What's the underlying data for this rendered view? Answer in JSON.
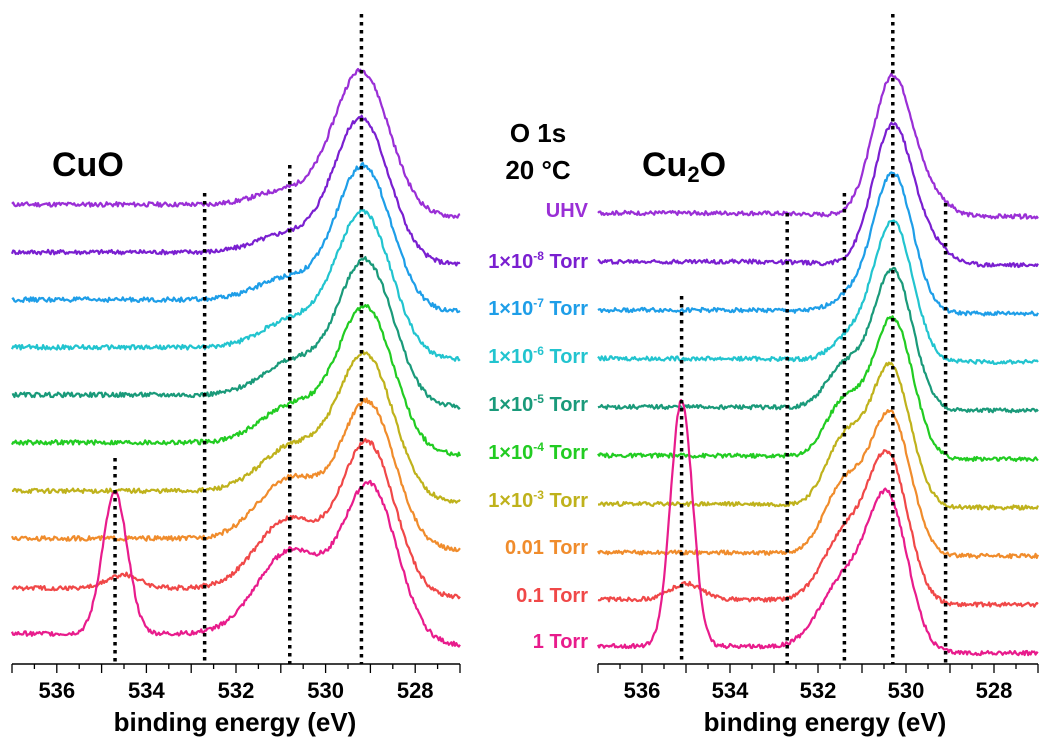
{
  "title_line1": "O 1s",
  "title_line2": "20 °C",
  "pressure_labels": [
    {
      "id": "uhv",
      "text": "UHV",
      "mant": "",
      "exp": "",
      "unit": "",
      "color": "#9a2fd6"
    },
    {
      "id": "p1e8",
      "text": "",
      "mant": "1×10",
      "exp": "-8",
      "unit": " Torr",
      "color": "#7a1fd0"
    },
    {
      "id": "p1e7",
      "text": "",
      "mant": "1×10",
      "exp": "-7",
      "unit": " Torr",
      "color": "#1e9ee8"
    },
    {
      "id": "p1e6",
      "text": "",
      "mant": "1×10",
      "exp": "-6",
      "unit": " Torr",
      "color": "#22c4cf"
    },
    {
      "id": "p1e5",
      "text": "",
      "mant": "1×10",
      "exp": "-5",
      "unit": " Torr",
      "color": "#1a9a7a"
    },
    {
      "id": "p1e4",
      "text": "",
      "mant": "1×10",
      "exp": "-4",
      "unit": " Torr",
      "color": "#22cc22"
    },
    {
      "id": "p1e3",
      "text": "",
      "mant": "1×10",
      "exp": "-3",
      "unit": " Torr",
      "color": "#bfb21c"
    },
    {
      "id": "p001",
      "text": "0.01 Torr",
      "mant": "",
      "exp": "",
      "unit": "",
      "color": "#f08c2c"
    },
    {
      "id": "p01",
      "text": "0.1 Torr",
      "mant": "",
      "exp": "",
      "unit": "",
      "color": "#f04848"
    },
    {
      "id": "p1",
      "text": "1 Torr",
      "mant": "",
      "exp": "",
      "unit": "",
      "color": "#e81c8c"
    }
  ],
  "chart_data": [
    {
      "type": "line",
      "panel_title": "CuO",
      "xlabel": "binding energy (eV)",
      "xlim": [
        537,
        527
      ],
      "x_reversed": true,
      "xticks": [
        536,
        534,
        532,
        530,
        528
      ],
      "grid": false,
      "reference_lines_eV": [
        534.7,
        532.7,
        530.8,
        529.2
      ],
      "series": [
        {
          "name": "UHV",
          "color": "#9a2fd6",
          "offset": 9,
          "peaks": [
            {
              "c": 529.2,
              "h": 3.8,
              "w": 0.62
            },
            {
              "c": 530.8,
              "h": 0.5,
              "w": 0.7
            }
          ],
          "edge": 0.32
        },
        {
          "name": "1×10-8 Torr",
          "color": "#7a1fd0",
          "offset": 8,
          "peaks": [
            {
              "c": 529.2,
              "h": 3.8,
              "w": 0.62
            },
            {
              "c": 530.8,
              "h": 0.6,
              "w": 0.7
            }
          ],
          "edge": 0.32
        },
        {
          "name": "1×10-7 Torr",
          "color": "#1e9ee8",
          "offset": 7,
          "peaks": [
            {
              "c": 529.15,
              "h": 3.8,
              "w": 0.62
            },
            {
              "c": 530.8,
              "h": 0.7,
              "w": 0.7
            }
          ],
          "edge": 0.32
        },
        {
          "name": "1×10-6 Torr",
          "color": "#22c4cf",
          "offset": 6,
          "peaks": [
            {
              "c": 529.15,
              "h": 3.8,
              "w": 0.62
            },
            {
              "c": 530.7,
              "h": 0.85,
              "w": 0.7
            }
          ],
          "edge": 0.32
        },
        {
          "name": "1×10-5 Torr",
          "color": "#1a9a7a",
          "offset": 5,
          "peaks": [
            {
              "c": 529.1,
              "h": 3.8,
              "w": 0.62
            },
            {
              "c": 530.7,
              "h": 1.0,
              "w": 0.7
            }
          ],
          "edge": 0.32
        },
        {
          "name": "1×10-4 Torr",
          "color": "#22cc22",
          "offset": 4,
          "peaks": [
            {
              "c": 529.1,
              "h": 3.8,
              "w": 0.62
            },
            {
              "c": 530.7,
              "h": 1.1,
              "w": 0.72
            }
          ],
          "edge": 0.32
        },
        {
          "name": "1×10-3 Torr",
          "color": "#bfb21c",
          "offset": 3,
          "peaks": [
            {
              "c": 529.1,
              "h": 3.8,
              "w": 0.62
            },
            {
              "c": 530.7,
              "h": 1.3,
              "w": 0.72
            }
          ],
          "edge": 0.3
        },
        {
          "name": "0.01 Torr",
          "color": "#f08c2c",
          "offset": 2,
          "peaks": [
            {
              "c": 529.05,
              "h": 3.8,
              "w": 0.6
            },
            {
              "c": 530.75,
              "h": 1.7,
              "w": 0.72
            }
          ],
          "edge": 0.3
        },
        {
          "name": "0.1 Torr",
          "color": "#f04848",
          "offset": 1,
          "peaks": [
            {
              "c": 529.05,
              "h": 4.0,
              "w": 0.6
            },
            {
              "c": 530.8,
              "h": 1.9,
              "w": 0.72
            },
            {
              "c": 534.5,
              "h": 0.35,
              "w": 0.35
            }
          ],
          "edge": 0.25
        },
        {
          "name": "1 Torr",
          "color": "#e81c8c",
          "offset": 0,
          "peaks": [
            {
              "c": 529.0,
              "h": 4.1,
              "w": 0.6
            },
            {
              "c": 530.75,
              "h": 2.3,
              "w": 0.75
            },
            {
              "c": 534.7,
              "h": 3.7,
              "w": 0.28
            }
          ],
          "edge": 0.3
        }
      ]
    },
    {
      "type": "line",
      "panel_title": "Cu2O",
      "xlabel": "binding energy (eV)",
      "xlim": [
        537,
        527
      ],
      "x_reversed": true,
      "xticks": [
        536,
        534,
        532,
        530,
        528
      ],
      "grid": false,
      "reference_lines_eV": [
        535.1,
        532.7,
        531.4,
        530.3,
        529.1
      ],
      "series": [
        {
          "name": "UHV",
          "color": "#9a2fd6",
          "offset": 9,
          "peaks": [
            {
              "c": 530.3,
              "h": 4.0,
              "w": 0.45
            },
            {
              "c": 529.4,
              "h": 0.45,
              "w": 0.4
            }
          ],
          "edge": 0.1
        },
        {
          "name": "1×10-8 Torr",
          "color": "#7a1fd0",
          "offset": 8,
          "peaks": [
            {
              "c": 530.3,
              "h": 4.0,
              "w": 0.45
            },
            {
              "c": 529.4,
              "h": 0.45,
              "w": 0.4
            }
          ],
          "edge": 0.1
        },
        {
          "name": "1×10-7 Torr",
          "color": "#1e9ee8",
          "offset": 7,
          "peaks": [
            {
              "c": 530.3,
              "h": 4.0,
              "w": 0.45
            },
            {
              "c": 531.3,
              "h": 0.4,
              "w": 0.4
            }
          ],
          "edge": 0.1
        },
        {
          "name": "1×10-6 Torr",
          "color": "#22c4cf",
          "offset": 6,
          "peaks": [
            {
              "c": 530.3,
              "h": 4.0,
              "w": 0.45
            },
            {
              "c": 531.3,
              "h": 0.6,
              "w": 0.4
            }
          ],
          "edge": 0.1
        },
        {
          "name": "1×10-5 Torr",
          "color": "#1a9a7a",
          "offset": 5,
          "peaks": [
            {
              "c": 530.3,
              "h": 4.0,
              "w": 0.45
            },
            {
              "c": 531.4,
              "h": 1.2,
              "w": 0.42
            }
          ],
          "edge": 0.1
        },
        {
          "name": "1×10-4 Torr",
          "color": "#22cc22",
          "offset": 4,
          "peaks": [
            {
              "c": 530.3,
              "h": 4.0,
              "w": 0.45
            },
            {
              "c": 531.4,
              "h": 1.6,
              "w": 0.42
            }
          ],
          "edge": 0.1
        },
        {
          "name": "1×10-3 Torr",
          "color": "#bfb21c",
          "offset": 3,
          "peaks": [
            {
              "c": 530.35,
              "h": 4.0,
              "w": 0.45
            },
            {
              "c": 531.4,
              "h": 1.9,
              "w": 0.42
            }
          ],
          "edge": 0.1
        },
        {
          "name": "0.01 Torr",
          "color": "#f08c2c",
          "offset": 2,
          "peaks": [
            {
              "c": 530.35,
              "h": 4.0,
              "w": 0.45
            },
            {
              "c": 531.4,
              "h": 2.0,
              "w": 0.45
            }
          ],
          "edge": 0.1
        },
        {
          "name": "0.1 Torr",
          "color": "#f04848",
          "offset": 1,
          "peaks": [
            {
              "c": 530.4,
              "h": 4.1,
              "w": 0.45
            },
            {
              "c": 531.4,
              "h": 1.9,
              "w": 0.5
            },
            {
              "c": 535.0,
              "h": 0.45,
              "w": 0.35
            }
          ],
          "edge": 0.15
        },
        {
          "name": "1 Torr",
          "color": "#e81c8c",
          "offset": 0,
          "peaks": [
            {
              "c": 530.4,
              "h": 4.2,
              "w": 0.45
            },
            {
              "c": 531.4,
              "h": 2.0,
              "w": 0.55
            },
            {
              "c": 535.1,
              "h": 7.0,
              "w": 0.25
            }
          ],
          "edge": 0.2
        }
      ]
    }
  ]
}
